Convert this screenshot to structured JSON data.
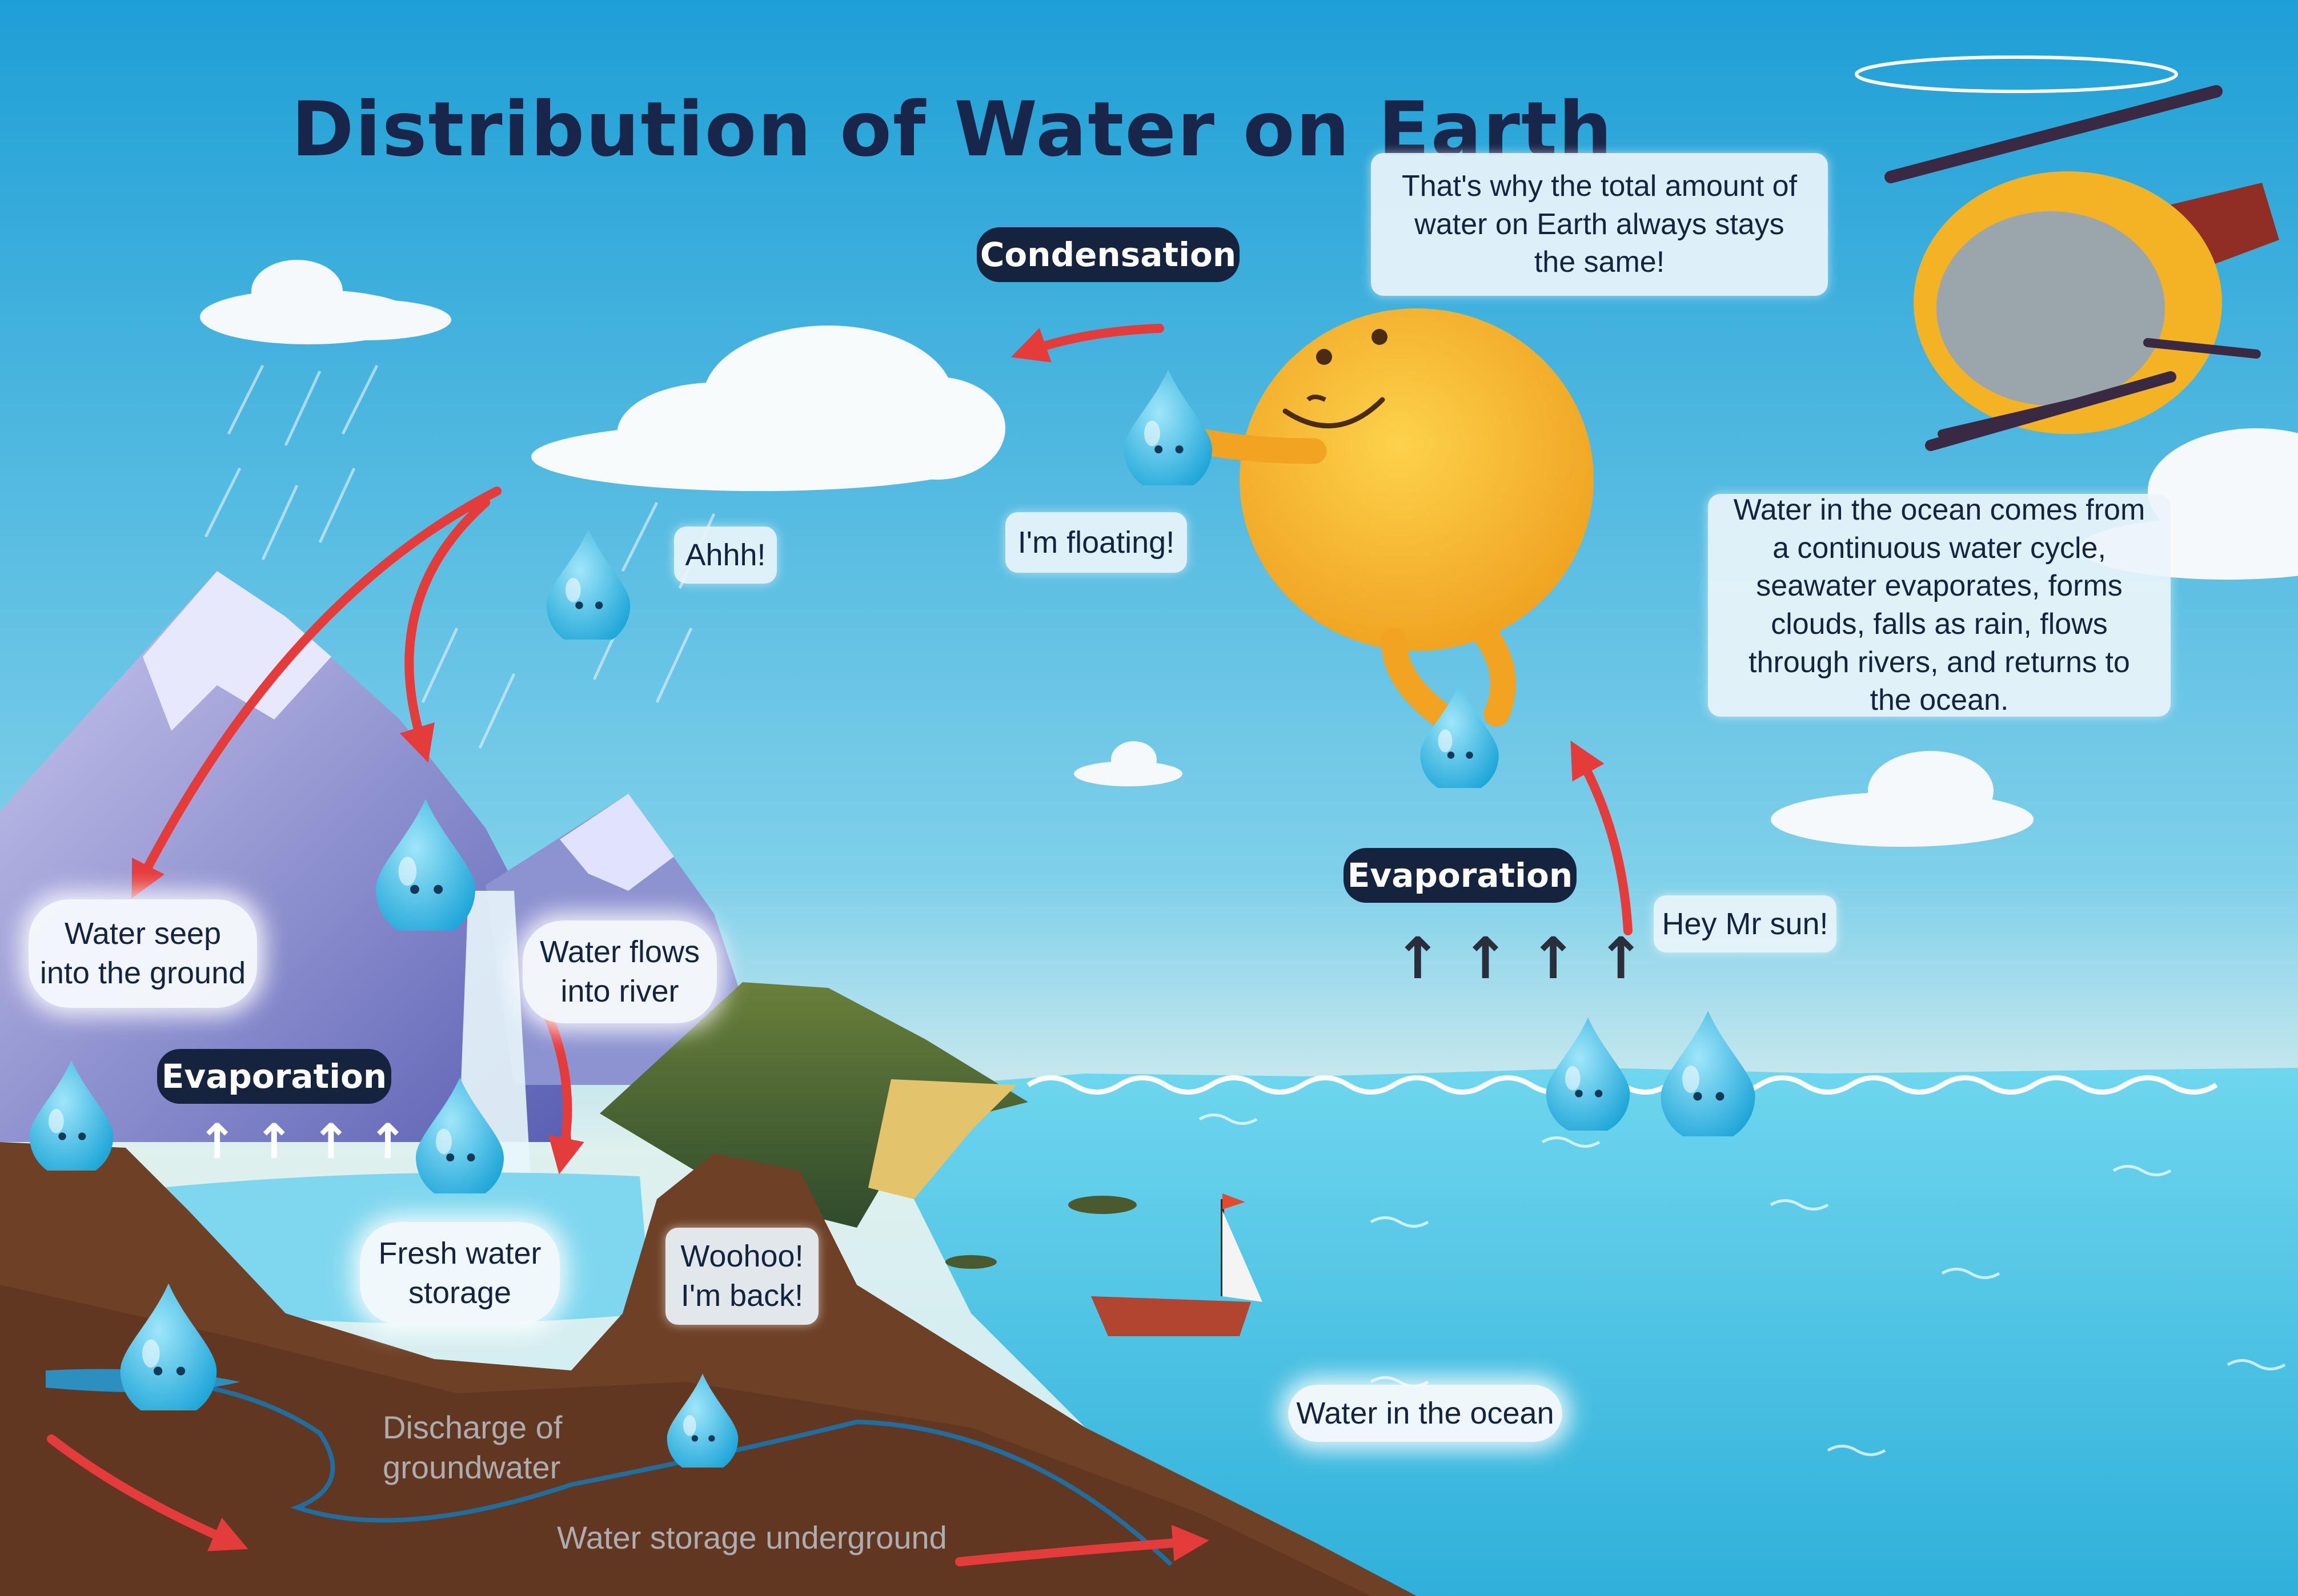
{
  "title": "Distribution of Water on Earth",
  "stages": {
    "condensation": "Condensation",
    "evaporation_ocean": "Evaporation",
    "evaporation_lake": "Evaporation"
  },
  "speech": {
    "sun": "That's why the total amount of water on Earth always stays the same!",
    "floating": "I'm floating!",
    "ahhh": "Ahhh!",
    "hey_sun": "Hey Mr sun!",
    "woohoo_line1": "Woohoo!",
    "woohoo_line2": "I'm back!",
    "ocean_info": "Water in the ocean comes from a continuous water cycle, seawater evaporates, forms clouds, falls as rain, flows through rivers, and returns to the ocean."
  },
  "labels": {
    "seep_line1": "Water seep",
    "seep_line2": "into the ground",
    "flows_line1": "Water flows",
    "flows_line2": "into river",
    "fresh_line1": "Fresh water",
    "fresh_line2": "storage",
    "ocean": "Water in the ocean",
    "discharge_line1": "Discharge of",
    "discharge_line2": "groundwater",
    "underground": "Water storage underground"
  },
  "arrow_glyphs": {
    "evaporation_ocean": "↑ ↑ ↑ ↑",
    "evaporation_lake": "↑ ↑ ↑ ↑"
  },
  "colors": {
    "sky_top": "#1e9fd6",
    "sky_bottom": "#d6eef2",
    "ocean": "#3cc4e4",
    "soil": "#6e4026",
    "mountain": "#8d92d0",
    "sun": "#f6b52a",
    "droplet": "#35bde9",
    "arrow": "#e43b3b",
    "pill": "#16233f",
    "title": "#17264a"
  }
}
